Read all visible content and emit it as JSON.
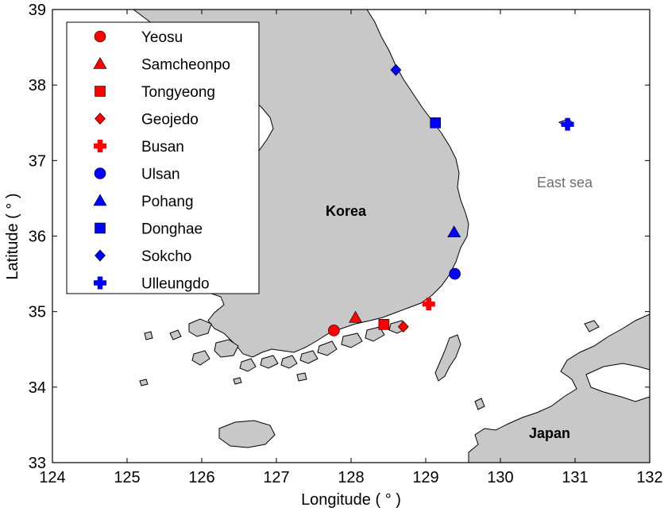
{
  "axes": {
    "xlabel": "Longitude ( ° )",
    "ylabel": "Latitude ( ° )",
    "xlim": [
      124,
      132
    ],
    "ylim": [
      33,
      39
    ],
    "xticks": [
      "124",
      "125",
      "126",
      "127",
      "128",
      "129",
      "130",
      "131",
      "132"
    ],
    "yticks": [
      "33",
      "34",
      "35",
      "36",
      "37",
      "38",
      "39"
    ]
  },
  "map_labels": {
    "korea": "Korea",
    "japan": "Japan",
    "east_sea": "East sea"
  },
  "colors": {
    "land": "#c8c8c8",
    "red_series": "#ff0000",
    "blue_series": "#0000ff",
    "coast": "#000000",
    "sea": "#ffffff"
  },
  "stations": [
    {
      "name": "Yeosu",
      "lon": 127.77,
      "lat": 34.75,
      "color": "red",
      "marker": "circle-icon"
    },
    {
      "name": "Samcheonpo",
      "lon": 128.06,
      "lat": 34.92,
      "color": "red",
      "marker": "triangle-icon"
    },
    {
      "name": "Tongyeong",
      "lon": 128.44,
      "lat": 34.83,
      "color": "red",
      "marker": "square-icon"
    },
    {
      "name": "Geojedo",
      "lon": 128.7,
      "lat": 34.8,
      "color": "red",
      "marker": "diamond-icon"
    },
    {
      "name": "Busan",
      "lon": 129.04,
      "lat": 35.1,
      "color": "red",
      "marker": "plus-icon"
    },
    {
      "name": "Ulsan",
      "lon": 129.39,
      "lat": 35.5,
      "color": "blue",
      "marker": "circle-icon"
    },
    {
      "name": "Pohang",
      "lon": 129.38,
      "lat": 36.05,
      "color": "blue",
      "marker": "triangle-icon"
    },
    {
      "name": "Donghae",
      "lon": 129.13,
      "lat": 37.5,
      "color": "blue",
      "marker": "square-icon"
    },
    {
      "name": "Sokcho",
      "lon": 128.6,
      "lat": 38.2,
      "color": "blue",
      "marker": "diamond-icon"
    },
    {
      "name": "Ulleungdo",
      "lon": 130.9,
      "lat": 37.48,
      "color": "blue",
      "marker": "plus-icon"
    }
  ]
}
